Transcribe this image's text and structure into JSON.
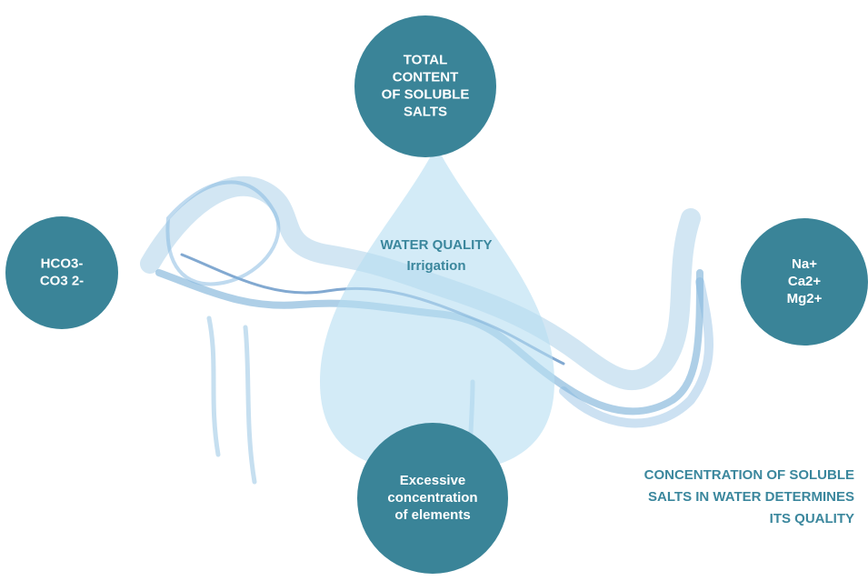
{
  "nodes": [
    {
      "label": [
        "TOTAL",
        "CONTENT",
        "OF SOLUBLE",
        "SALTS"
      ]
    },
    {
      "label": [
        "HCO3-",
        "CO3 2-"
      ]
    },
    {
      "label": [
        "Na+",
        "Ca2+",
        "Mg2+"
      ]
    },
    {
      "label": [
        "Excessive",
        "concentration",
        "of elements"
      ]
    }
  ],
  "center": {
    "title": "WATER QUALITY",
    "subtitle": "Irrigation"
  },
  "caption": [
    "CONCENTRATION OF SOLUBLE",
    "SALTS IN WATER DETERMINES",
    "ITS QUALITY"
  ]
}
